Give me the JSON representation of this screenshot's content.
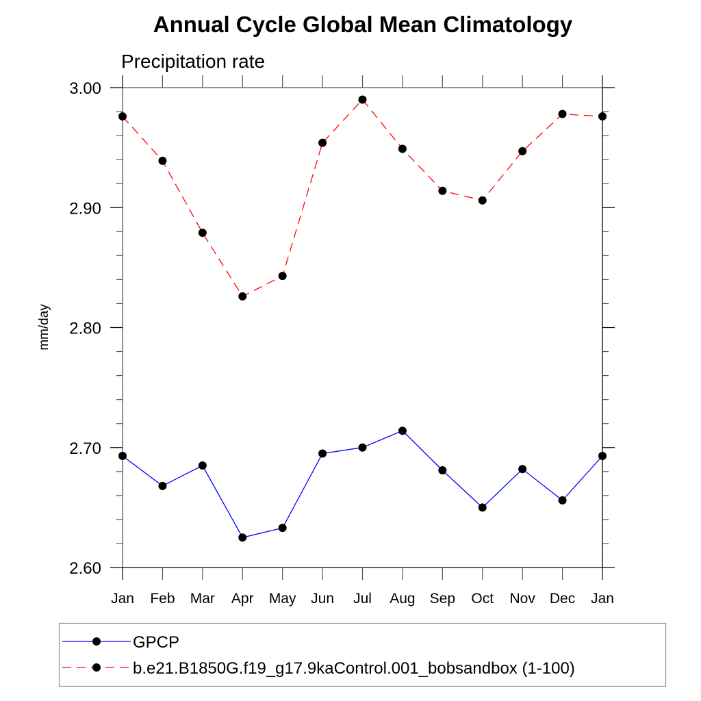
{
  "chart_data": {
    "type": "line",
    "title": "Annual Cycle Global Mean Climatology",
    "subtitle": "Precipitation rate",
    "xlabel": "",
    "ylabel": "mm/day",
    "categories": [
      "Jan",
      "Feb",
      "Mar",
      "Apr",
      "May",
      "Jun",
      "Jul",
      "Aug",
      "Sep",
      "Oct",
      "Nov",
      "Dec",
      "Jan"
    ],
    "ylim": [
      2.6,
      3.0
    ],
    "yticks_major": [
      2.6,
      2.7,
      2.8,
      2.9,
      3.0
    ],
    "ytick_labels": [
      "2.60",
      "2.70",
      "2.80",
      "2.90",
      "3.00"
    ],
    "yticks_minor_step": 0.02,
    "grid": false,
    "legend_position": "bottom",
    "series": [
      {
        "name": "GPCP",
        "color": "#0000ff",
        "line_style": "solid",
        "marker": "filled-circle",
        "marker_color": "#000000",
        "values": [
          2.693,
          2.668,
          2.685,
          2.625,
          2.633,
          2.695,
          2.7,
          2.714,
          2.681,
          2.65,
          2.682,
          2.656,
          2.693
        ]
      },
      {
        "name": "b.e21.B1850G.f19_g17.9kaControl.001_bobsandbox (1-100)",
        "color": "#ff0000",
        "line_style": "dashed",
        "marker": "filled-circle",
        "marker_color": "#000000",
        "values": [
          2.976,
          2.939,
          2.879,
          2.826,
          2.843,
          2.954,
          2.99,
          2.949,
          2.914,
          2.906,
          2.947,
          2.978,
          2.976
        ]
      }
    ]
  }
}
